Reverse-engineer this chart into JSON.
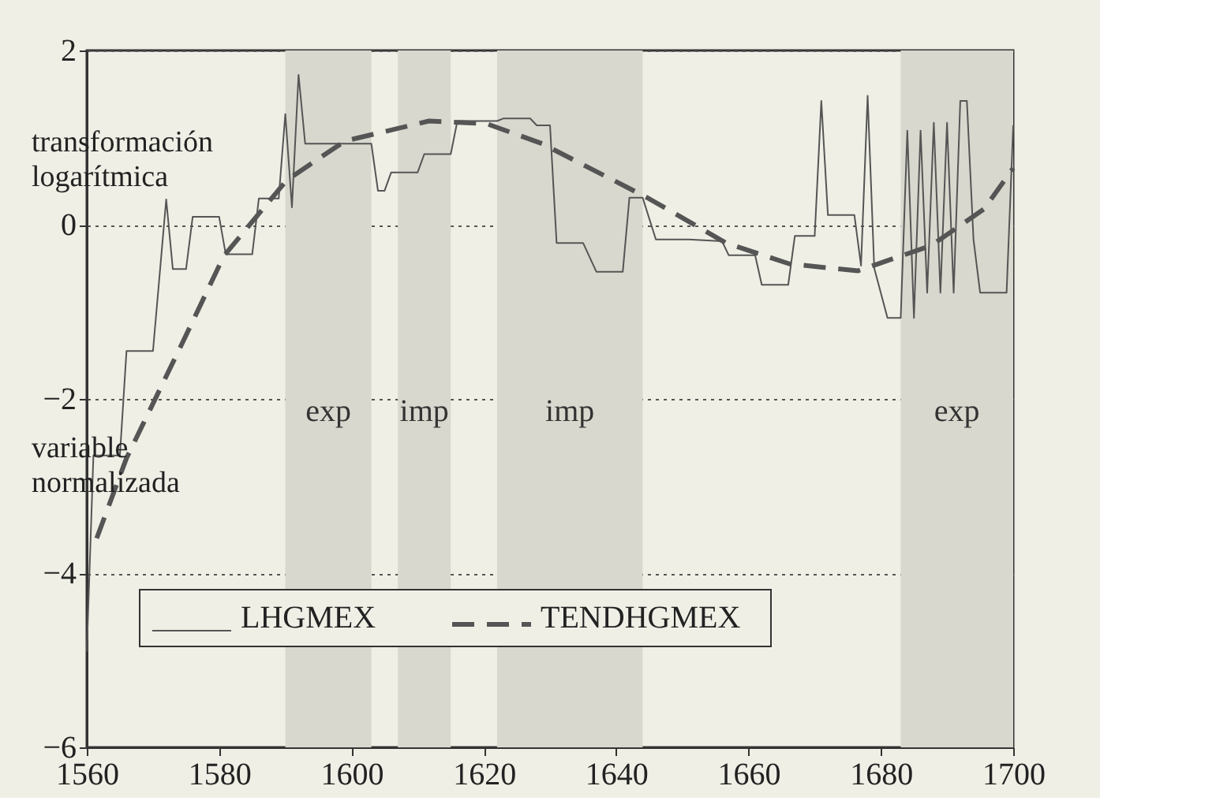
{
  "chart_data": {
    "type": "line",
    "annotations": [
      "transformación logarítmica",
      "variable normalizada"
    ],
    "series": [
      {
        "name": "LHGMEX",
        "color": "#555555",
        "line_style": "solid",
        "x": [
          1560,
          1561,
          1565,
          1566,
          1570,
          1572,
          1573,
          1575,
          1576,
          1580,
          1581,
          1585,
          1586,
          1589,
          1590,
          1591,
          1592,
          1593,
          1603,
          1604,
          1605,
          1606,
          1610,
          1611,
          1615,
          1616,
          1622,
          1623,
          1627,
          1628,
          1630,
          1631,
          1635,
          1637,
          1641,
          1642,
          1644,
          1646,
          1651,
          1656,
          1657,
          1661,
          1662,
          1666,
          1667,
          1670,
          1671,
          1672,
          1676,
          1677,
          1678,
          1679,
          1681,
          1683,
          1684,
          1685,
          1686,
          1687,
          1688,
          1689,
          1690,
          1691,
          1692,
          1693,
          1694,
          1695,
          1699,
          1700
        ],
        "values": [
          -4.9,
          -2.65,
          -2.65,
          -1.45,
          -1.45,
          0.29,
          -0.51,
          -0.51,
          0.09,
          0.09,
          -0.34,
          -0.34,
          0.3,
          0.3,
          1.27,
          0.2,
          1.72,
          0.93,
          0.93,
          0.39,
          0.39,
          0.6,
          0.6,
          0.81,
          0.81,
          1.19,
          1.19,
          1.22,
          1.22,
          1.14,
          1.14,
          -0.21,
          -0.21,
          -0.54,
          -0.54,
          0.31,
          0.31,
          -0.17,
          -0.17,
          -0.19,
          -0.35,
          -0.35,
          -0.69,
          -0.69,
          -0.13,
          -0.13,
          1.42,
          0.11,
          0.11,
          -0.47,
          1.48,
          -0.5,
          -1.07,
          -1.07,
          1.08,
          -1.07,
          1.08,
          -0.78,
          1.17,
          -0.78,
          1.17,
          -0.78,
          1.42,
          1.42,
          -0.17,
          -0.78,
          -0.78,
          1.14
        ]
      },
      {
        "name": "TENDHGMEX",
        "color": "#555555",
        "line_style": "dashed",
        "x": [
          1561.5,
          1566,
          1574.3,
          1580.7,
          1590.2,
          1599,
          1611.7,
          1620.4,
          1628.8,
          1644.7,
          1656.6,
          1666.2,
          1676.5,
          1687.6,
          1695.6,
          1700
        ],
        "values": [
          -3.6,
          -2.68,
          -1.38,
          -0.36,
          0.51,
          0.96,
          1.19,
          1.16,
          0.93,
          0.31,
          -0.21,
          -0.45,
          -0.53,
          -0.24,
          0.18,
          0.65
        ]
      }
    ],
    "bands": [
      {
        "axis": "x",
        "from": 1590,
        "to": 1603,
        "label": "exp",
        "color": "#d8d8ce"
      },
      {
        "axis": "x",
        "from": 1607,
        "to": 1615,
        "label": "imp",
        "color": "#d8d8ce"
      },
      {
        "axis": "x",
        "from": 1622,
        "to": 1644,
        "label": "imp",
        "color": "#d8d8ce"
      },
      {
        "axis": "x",
        "from": 1683,
        "to": 1700,
        "label": "exp",
        "color": "#d8d8ce"
      }
    ],
    "xlim": [
      1560,
      1700
    ],
    "xticks": [
      1560,
      1580,
      1600,
      1620,
      1640,
      1660,
      1680,
      1700
    ],
    "ylim": [
      -6,
      2
    ],
    "yticks": [
      -6,
      -4,
      -2,
      0,
      2
    ],
    "grid": "y",
    "legend": "bottom",
    "marker": "none"
  }
}
